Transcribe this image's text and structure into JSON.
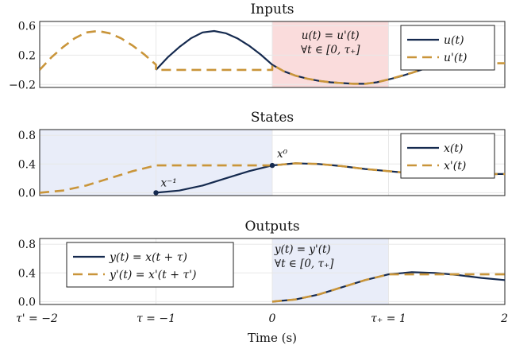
{
  "colors": {
    "actual": "#152a4f",
    "shifted": "#c9953a",
    "red_region": "#fadcdc",
    "blue_region": "#e9edf9",
    "grid": "#e8e8e8"
  },
  "x_axis": {
    "xlim": [
      -2,
      2
    ],
    "label": "Time (s)",
    "ticks": [
      {
        "x": -2,
        "label": "τ' = −2"
      },
      {
        "x": -1,
        "label": "τ = −1"
      },
      {
        "x": 0,
        "label": "0"
      },
      {
        "x": 1,
        "label": "τ₊ = 1"
      },
      {
        "x": 2,
        "label": "2"
      }
    ]
  },
  "chart_data": [
    {
      "type": "line",
      "title": "Inputs",
      "ylim": [
        -0.24,
        0.66
      ],
      "yticks": [
        {
          "y": 0.6,
          "label": "0.6"
        },
        {
          "y": 0.2,
          "label": "0.2"
        },
        {
          "y": -0.2,
          "label": "−0.2"
        }
      ],
      "region": {
        "x": [
          0,
          1
        ],
        "color": "red"
      },
      "annotation": [
        "u(t) = u'(t)",
        "∀t ∈ [0, τ₊]"
      ],
      "legend_position": "top-right",
      "series": [
        {
          "name": "u(t)",
          "style": "solid",
          "x": [
            -1.0,
            -0.9,
            -0.8,
            -0.7,
            -0.6,
            -0.5,
            -0.4,
            -0.3,
            -0.2,
            -0.1,
            0.0,
            0.1,
            0.2,
            0.3,
            0.4,
            0.5,
            0.6,
            0.7,
            0.8,
            0.9,
            1.0,
            1.1,
            1.2,
            1.3,
            1.4,
            1.5
          ],
          "y": [
            0.0,
            0.17,
            0.31,
            0.43,
            0.51,
            0.53,
            0.5,
            0.43,
            0.33,
            0.21,
            0.07,
            -0.02,
            -0.08,
            -0.12,
            -0.15,
            -0.17,
            -0.18,
            -0.19,
            -0.19,
            -0.17,
            -0.13,
            -0.09,
            -0.04,
            0.01,
            0.06,
            0.09
          ]
        },
        {
          "name": "u'(t)",
          "style": "dashed",
          "x": [
            -2.0,
            -1.9,
            -1.8,
            -1.7,
            -1.6,
            -1.5,
            -1.4,
            -1.3,
            -1.2,
            -1.1,
            -1.0,
            -1.0,
            -0.9,
            -0.5,
            0.0,
            0.0,
            0.1,
            0.2,
            0.3,
            0.4,
            0.5,
            0.6,
            0.7,
            0.8,
            0.9,
            1.0,
            1.2,
            1.4,
            1.6,
            1.8,
            2.0
          ],
          "y": [
            0.0,
            0.17,
            0.31,
            0.43,
            0.51,
            0.53,
            0.5,
            0.43,
            0.33,
            0.21,
            0.07,
            0.0,
            0.0,
            0.0,
            0.0,
            0.07,
            -0.02,
            -0.08,
            -0.12,
            -0.15,
            -0.17,
            -0.18,
            -0.19,
            -0.19,
            -0.17,
            -0.13,
            -0.04,
            0.06,
            0.09,
            0.09,
            0.09
          ]
        }
      ]
    },
    {
      "type": "line",
      "title": "States",
      "ylim": [
        -0.04,
        0.88
      ],
      "yticks": [
        {
          "y": 0.8,
          "label": "0.8"
        },
        {
          "y": 0.4,
          "label": "0.4"
        },
        {
          "y": 0.0,
          "label": "0.0"
        }
      ],
      "region": {
        "x": [
          -2,
          0
        ],
        "color": "blue"
      },
      "points": [
        {
          "x": -1,
          "y": 0.0,
          "label": "x⁻¹"
        },
        {
          "x": 0,
          "y": 0.38,
          "label": "x⁰"
        }
      ],
      "legend_position": "top-right",
      "series": [
        {
          "name": "x(t)",
          "style": "solid",
          "x": [
            -1.0,
            -0.8,
            -0.6,
            -0.4,
            -0.2,
            0.0,
            0.2,
            0.4,
            0.6,
            0.8,
            1.0,
            1.2,
            1.4,
            1.6,
            1.8,
            2.0
          ],
          "y": [
            0.0,
            0.03,
            0.1,
            0.2,
            0.3,
            0.38,
            0.41,
            0.4,
            0.37,
            0.33,
            0.3,
            0.27,
            0.26,
            0.26,
            0.26,
            0.26
          ]
        },
        {
          "name": "x'(t)",
          "style": "dashed",
          "x": [
            -2.0,
            -1.8,
            -1.6,
            -1.4,
            -1.2,
            -1.0,
            -0.6,
            -0.2,
            0.0,
            0.2,
            0.4,
            0.6,
            0.8,
            1.0,
            1.2,
            1.4,
            1.6,
            1.8,
            2.0
          ],
          "y": [
            0.0,
            0.03,
            0.1,
            0.2,
            0.3,
            0.38,
            0.38,
            0.38,
            0.38,
            0.41,
            0.4,
            0.37,
            0.33,
            0.3,
            0.27,
            0.26,
            0.26,
            0.26,
            0.26
          ]
        }
      ]
    },
    {
      "type": "line",
      "title": "Outputs",
      "ylim": [
        -0.04,
        0.88
      ],
      "yticks": [
        {
          "y": 0.8,
          "label": "0.8"
        },
        {
          "y": 0.4,
          "label": "0.4"
        },
        {
          "y": 0.0,
          "label": "0.0"
        }
      ],
      "region": {
        "x": [
          0,
          1
        ],
        "color": "blue"
      },
      "annotation": [
        "y(t) = y'(t)",
        "∀t ∈ [0, τ₊]"
      ],
      "legend_position": "top-left",
      "series": [
        {
          "name": "y(t) = x(t + τ)",
          "style": "solid",
          "x": [
            0.0,
            0.2,
            0.4,
            0.6,
            0.8,
            1.0,
            1.2,
            1.4,
            1.6,
            1.8,
            2.0
          ],
          "y": [
            0.0,
            0.03,
            0.1,
            0.2,
            0.3,
            0.38,
            0.41,
            0.4,
            0.37,
            0.33,
            0.3
          ]
        },
        {
          "name": "y'(t) = x'(t + τ')",
          "style": "dashed",
          "x": [
            0.0,
            0.2,
            0.4,
            0.6,
            0.8,
            1.0,
            1.4,
            1.8,
            2.0
          ],
          "y": [
            0.0,
            0.03,
            0.1,
            0.2,
            0.3,
            0.38,
            0.38,
            0.38,
            0.38
          ]
        }
      ]
    }
  ]
}
